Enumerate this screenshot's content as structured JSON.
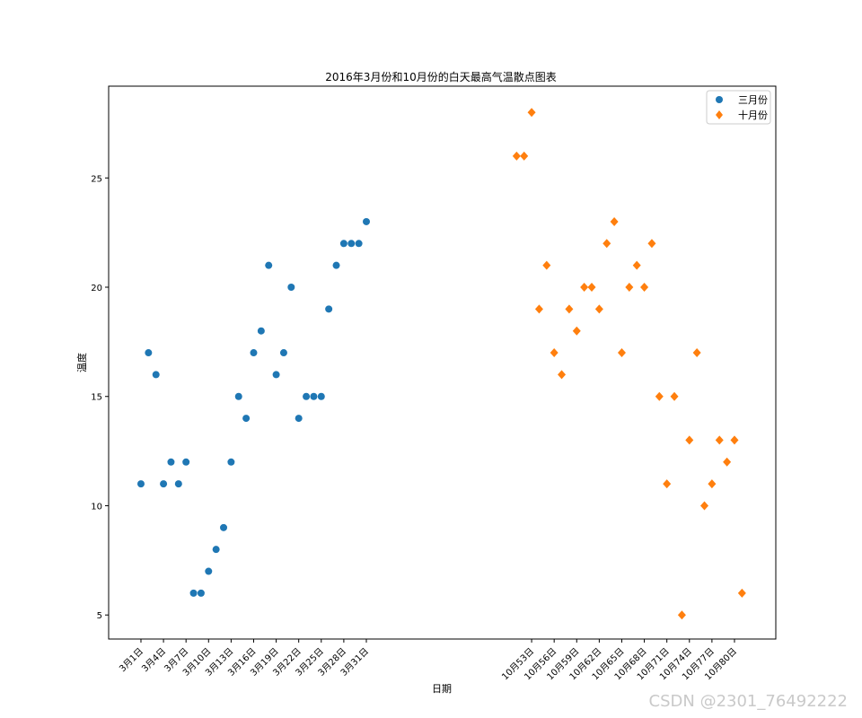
{
  "chart_data": {
    "type": "scatter",
    "title": "2016年3月份和10月份的白天最高气温散点图表",
    "xlabel": "日期",
    "ylabel": "温度",
    "ylim": [
      3.9,
      29.2
    ],
    "xlim": [
      -3.3,
      85.5
    ],
    "yticks": [
      5,
      10,
      15,
      20,
      25
    ],
    "xticks": [
      {
        "x": 1,
        "label": "3月1日"
      },
      {
        "x": 4,
        "label": "3月4日"
      },
      {
        "x": 7,
        "label": "3月7日"
      },
      {
        "x": 10,
        "label": "3月10日"
      },
      {
        "x": 13,
        "label": "3月13日"
      },
      {
        "x": 16,
        "label": "3月16日"
      },
      {
        "x": 19,
        "label": "3月19日"
      },
      {
        "x": 22,
        "label": "3月22日"
      },
      {
        "x": 25,
        "label": "3月25日"
      },
      {
        "x": 28,
        "label": "3月28日"
      },
      {
        "x": 31,
        "label": "3月31日"
      },
      {
        "x": 53,
        "label": "10月53日"
      },
      {
        "x": 56,
        "label": "10月56日"
      },
      {
        "x": 59,
        "label": "10月59日"
      },
      {
        "x": 62,
        "label": "10月62日"
      },
      {
        "x": 65,
        "label": "10月65日"
      },
      {
        "x": 68,
        "label": "10月68日"
      },
      {
        "x": 71,
        "label": "10月71日"
      },
      {
        "x": 74,
        "label": "10月74日"
      },
      {
        "x": 77,
        "label": "10月77日"
      },
      {
        "x": 80,
        "label": "10月80日"
      }
    ],
    "legend_placement": "top-right",
    "grid": false,
    "series": [
      {
        "name": "三月份",
        "color": "#1f77b4",
        "marker": "circle",
        "x": [
          1,
          2,
          3,
          4,
          5,
          6,
          7,
          8,
          9,
          10,
          11,
          12,
          13,
          14,
          15,
          16,
          17,
          18,
          19,
          20,
          21,
          22,
          23,
          24,
          25,
          26,
          27,
          28,
          29,
          30,
          31
        ],
        "y": [
          11,
          17,
          16,
          11,
          12,
          11,
          12,
          6,
          6,
          7,
          8,
          9,
          12,
          15,
          14,
          17,
          18,
          21,
          16,
          17,
          20,
          14,
          15,
          15,
          15,
          19,
          21,
          22,
          22,
          22,
          23
        ]
      },
      {
        "name": "十月份",
        "color": "#ff7f0e",
        "marker": "diamond",
        "x": [
          51,
          52,
          53,
          54,
          55,
          56,
          57,
          58,
          59,
          60,
          61,
          62,
          63,
          64,
          65,
          66,
          67,
          68,
          69,
          70,
          71,
          72,
          73,
          74,
          75,
          76,
          77,
          78,
          79,
          80,
          81
        ],
        "y": [
          26,
          26,
          28,
          19,
          21,
          17,
          16,
          19,
          18,
          20,
          20,
          19,
          22,
          23,
          17,
          20,
          21,
          20,
          22,
          15,
          11,
          15,
          5,
          13,
          17,
          10,
          11,
          13,
          12,
          13,
          6
        ]
      }
    ]
  },
  "watermark": "CSDN @2301_76492222"
}
